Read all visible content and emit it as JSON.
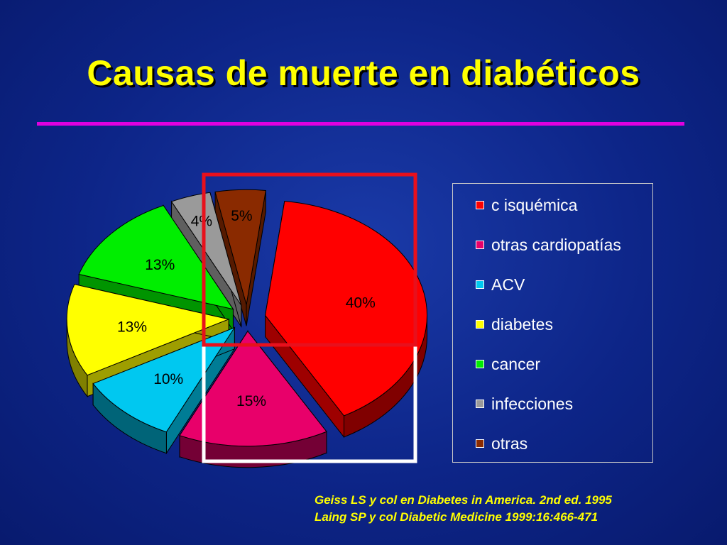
{
  "title": "Causas de muerte en diabéticos",
  "colors": {
    "background": "#0d2588",
    "title": "#ffff00",
    "rule": "#e000e0",
    "highlight_red": "#e8101c",
    "highlight_white": "#ffffff"
  },
  "chart_data": {
    "type": "pie",
    "style": "3d-exploded",
    "series": [
      {
        "label": "c isquémica",
        "value": 40,
        "value_label": "40%",
        "color": "#ff0000"
      },
      {
        "label": "otras cardiopatías",
        "value": 15,
        "value_label": "15%",
        "color": "#e8006a"
      },
      {
        "label": "ACV",
        "value": 10,
        "value_label": "10%",
        "color": "#00c8f0"
      },
      {
        "label": "diabetes",
        "value": 13,
        "value_label": "13%",
        "color": "#ffff00"
      },
      {
        "label": "cancer",
        "value": 13,
        "value_label": "13%",
        "color": "#00ee00"
      },
      {
        "label": "infecciones",
        "value": 4,
        "value_label": "4%",
        "color": "#9a9a9a"
      },
      {
        "label": "otras",
        "value": 5,
        "value_label": "5%",
        "color": "#8a2a00"
      }
    ],
    "legend_position": "right"
  },
  "legend": {
    "items": [
      "c isquémica",
      "otras cardiopatías",
      "ACV",
      "diabetes",
      "cancer",
      "infecciones",
      "otras"
    ]
  },
  "citation": {
    "line1": "Geiss LS y col en Diabetes in America. 2nd ed. 1995",
    "line2": "Laing SP y col Diabetic Medicine 1999:16:466-471"
  }
}
